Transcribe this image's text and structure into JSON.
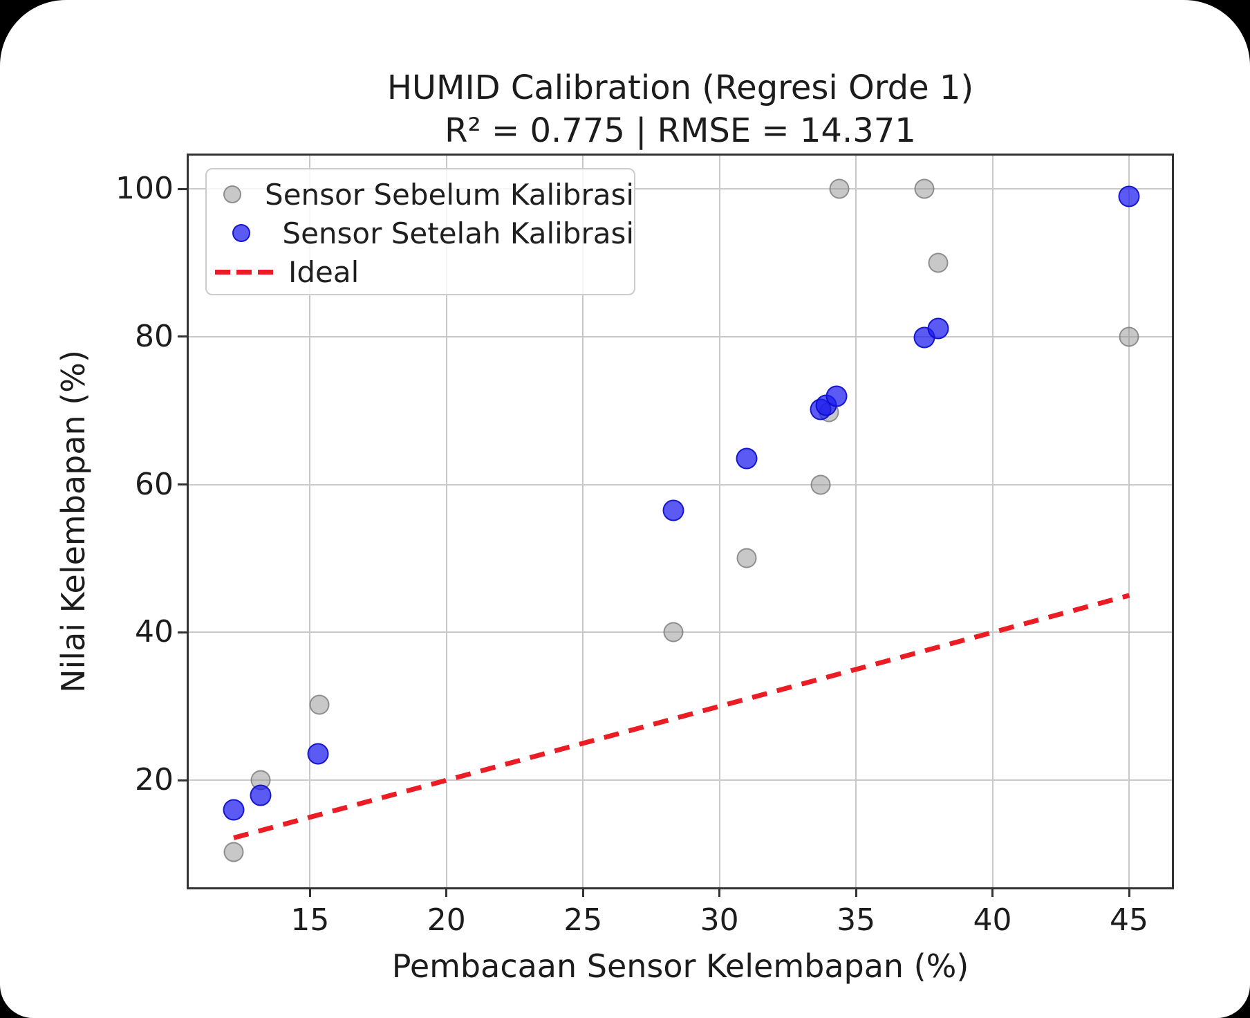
{
  "chart_data": {
    "type": "scatter",
    "title": "HUMID Calibration (Regresi Orde 1)",
    "subtitle": "R² = 0.775 | RMSE = 14.371",
    "metrics": {
      "r_squared": 0.775,
      "rmse": 14.371
    },
    "xlabel": "Pembacaan Sensor Kelembapan (%)",
    "ylabel": "Nilai Kelembapan (%)",
    "xlim": [
      10.56,
      46.57
    ],
    "ylim": [
      5.5,
      104.5
    ],
    "xticks": [
      15,
      20,
      25,
      30,
      35,
      40,
      45
    ],
    "yticks": [
      20,
      40,
      60,
      80,
      100
    ],
    "grid": true,
    "grid_color": "#c9c9c9",
    "legend_position": "upper-left",
    "series": [
      {
        "name": "Sensor Sebelum Kalibrasi",
        "type": "scatter",
        "size": 29,
        "fill": "rgba(145,145,145,0.5)",
        "edge": "rgba(118,118,118,0.7)",
        "points": [
          [
            12.2,
            10.3
          ],
          [
            13.2,
            20
          ],
          [
            15.35,
            30.2
          ],
          [
            28.3,
            40
          ],
          [
            31,
            50
          ],
          [
            33.7,
            60
          ],
          [
            34,
            69.8
          ],
          [
            34.4,
            100
          ],
          [
            37.5,
            100
          ],
          [
            38,
            90
          ],
          [
            45,
            80
          ]
        ]
      },
      {
        "name": "Sensor Setelah Kalibrasi",
        "type": "scatter",
        "size": 31,
        "fill": "rgba(28,28,238,0.72)",
        "edge": "rgba(10,10,205,0.85)",
        "points": [
          [
            12.2,
            16
          ],
          [
            13.2,
            17.9
          ],
          [
            15.3,
            23.6
          ],
          [
            28.3,
            56.5
          ],
          [
            31,
            63.5
          ],
          [
            33.7,
            70.2
          ],
          [
            33.9,
            70.7
          ],
          [
            34.3,
            71.9
          ],
          [
            37.5,
            79.9
          ],
          [
            38,
            81.1
          ],
          [
            45,
            99
          ]
        ]
      },
      {
        "name": "Ideal",
        "type": "line",
        "style": "dashed",
        "color": "#ec1c24",
        "points": [
          [
            12.2,
            12.2
          ],
          [
            45,
            45
          ]
        ]
      }
    ]
  }
}
